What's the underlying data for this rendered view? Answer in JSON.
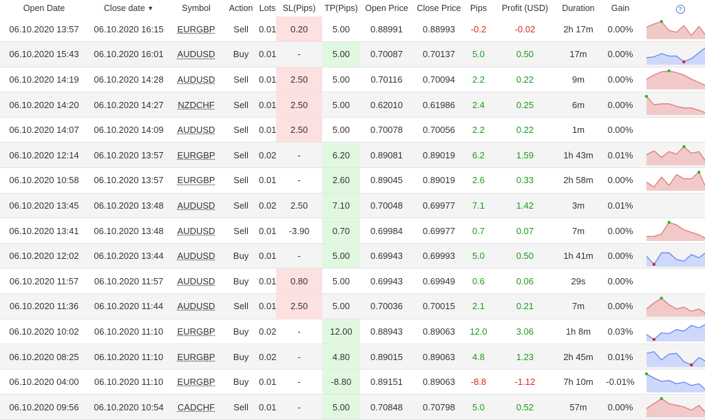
{
  "headers": {
    "open_date": "Open Date",
    "close_date": "Close date",
    "symbol": "Symbol",
    "action": "Action",
    "lots": "Lots",
    "sl": "SL(Pips)",
    "tp": "TP(Pips)",
    "open_price": "Open Price",
    "close_price": "Close Price",
    "pips": "Pips",
    "profit": "Profit (USD)",
    "duration": "Duration",
    "gain": "Gain",
    "help_icon": "?"
  },
  "colors": {
    "sell_fill": "#f2c9c9",
    "sell_stroke": "#e07878",
    "buy_fill": "#cdd8fb",
    "buy_stroke": "#6b82f0",
    "marker_high": "#22bb22",
    "marker_low": "#dd2222",
    "marker_last": "#ff9900"
  },
  "rows": [
    {
      "open": "06.10.2020 13:57",
      "close": "06.10.2020 16:15",
      "symbol": "EURGBP",
      "action": "Sell",
      "lots": "0.01",
      "sl": "0.20",
      "sl_mark": "red",
      "tp": "5.00",
      "tp_mark": "",
      "open_price": "0.88991",
      "close_price": "0.88993",
      "pips": "-0.2",
      "profit": "-0.02",
      "duration": "2h 17m",
      "gain": "0.00%",
      "spark": [
        0.6,
        0.8,
        0.95,
        0.4,
        0.3,
        0.7,
        0.1,
        0.65,
        0.05,
        0.6
      ]
    },
    {
      "open": "06.10.2020 15:43",
      "close": "06.10.2020 16:01",
      "symbol": "AUDUSD",
      "action": "Buy",
      "lots": "0.01",
      "sl": "-",
      "sl_mark": "",
      "tp": "5.00",
      "tp_mark": "green",
      "open_price": "0.70087",
      "close_price": "0.70137",
      "pips": "5.0",
      "profit": "0.50",
      "duration": "17m",
      "gain": "0.00%",
      "spark": [
        0.3,
        0.35,
        0.55,
        0.4,
        0.4,
        0.05,
        0.25,
        0.6,
        0.95,
        0.8
      ]
    },
    {
      "open": "06.10.2020 14:19",
      "close": "06.10.2020 14:28",
      "symbol": "AUDUSD",
      "action": "Sell",
      "lots": "0.01",
      "sl": "2.50",
      "sl_mark": "red",
      "tp": "5.00",
      "tp_mark": "",
      "open_price": "0.70116",
      "close_price": "0.70094",
      "pips": "2.2",
      "profit": "0.22",
      "duration": "9m",
      "gain": "0.00%",
      "spark": [
        0.5,
        0.75,
        0.95,
        1.0,
        0.9,
        0.75,
        0.5,
        0.3,
        0.1,
        0.3
      ]
    },
    {
      "open": "06.10.2020 14:20",
      "close": "06.10.2020 14:27",
      "symbol": "NZDCHF",
      "action": "Sell",
      "lots": "0.01",
      "sl": "2.50",
      "sl_mark": "red",
      "tp": "5.00",
      "tp_mark": "",
      "open_price": "0.62010",
      "close_price": "0.61986",
      "pips": "2.4",
      "profit": "0.25",
      "duration": "6m",
      "gain": "0.00%",
      "spark": [
        1.0,
        0.5,
        0.55,
        0.55,
        0.4,
        0.3,
        0.3,
        0.15,
        0.0,
        0.45
      ]
    },
    {
      "open": "06.10.2020 14:07",
      "close": "06.10.2020 14:09",
      "symbol": "AUDUSD",
      "action": "Sell",
      "lots": "0.01",
      "sl": "2.50",
      "sl_mark": "red",
      "tp": "5.00",
      "tp_mark": "",
      "open_price": "0.70078",
      "close_price": "0.70056",
      "pips": "2.2",
      "profit": "0.22",
      "duration": "1m",
      "gain": "0.00%",
      "spark": []
    },
    {
      "open": "06.10.2020 12:14",
      "close": "06.10.2020 13:57",
      "symbol": "EURGBP",
      "action": "Sell",
      "lots": "0.02",
      "sl": "-",
      "sl_mark": "",
      "tp": "6.20",
      "tp_mark": "green",
      "open_price": "0.89081",
      "close_price": "0.89019",
      "pips": "6.2",
      "profit": "1.59",
      "duration": "1h 43m",
      "gain": "0.01%",
      "spark": [
        0.5,
        0.75,
        0.35,
        0.7,
        0.55,
        1.0,
        0.6,
        0.7,
        0.05,
        0.15
      ]
    },
    {
      "open": "06.10.2020 10:58",
      "close": "06.10.2020 13:57",
      "symbol": "EURGBP",
      "action": "Sell",
      "lots": "0.01",
      "sl": "-",
      "sl_mark": "",
      "tp": "2.60",
      "tp_mark": "green",
      "open_price": "0.89045",
      "close_price": "0.89019",
      "pips": "2.6",
      "profit": "0.33",
      "duration": "2h 58m",
      "gain": "0.00%",
      "spark": [
        0.4,
        0.1,
        0.7,
        0.2,
        0.85,
        0.6,
        0.6,
        1.0,
        0.0,
        0.15
      ]
    },
    {
      "open": "06.10.2020 13:45",
      "close": "06.10.2020 13:48",
      "symbol": "AUDUSD",
      "action": "Sell",
      "lots": "0.02",
      "sl": "2.50",
      "sl_mark": "",
      "tp": "7.10",
      "tp_mark": "green",
      "open_price": "0.70048",
      "close_price": "0.69977",
      "pips": "7.1",
      "profit": "1.42",
      "duration": "3m",
      "gain": "0.01%",
      "spark": []
    },
    {
      "open": "06.10.2020 13:41",
      "close": "06.10.2020 13:48",
      "symbol": "AUDUSD",
      "action": "Sell",
      "lots": "0.01",
      "sl": "-3.90",
      "sl_mark": "",
      "tp": "0.70",
      "tp_mark": "green",
      "open_price": "0.69984",
      "close_price": "0.69977",
      "pips": "0.7",
      "profit": "0.07",
      "duration": "7m",
      "gain": "0.00%",
      "spark": [
        0.15,
        0.15,
        0.3,
        1.0,
        0.85,
        0.55,
        0.4,
        0.25,
        0.0,
        0.15
      ]
    },
    {
      "open": "06.10.2020 12:02",
      "close": "06.10.2020 13:44",
      "symbol": "AUDUSD",
      "action": "Buy",
      "lots": "0.01",
      "sl": "-",
      "sl_mark": "",
      "tp": "5.00",
      "tp_mark": "green",
      "open_price": "0.69943",
      "close_price": "0.69993",
      "pips": "5.0",
      "profit": "0.50",
      "duration": "1h 41m",
      "gain": "0.00%",
      "spark": [
        0.5,
        0.0,
        0.7,
        0.7,
        0.3,
        0.2,
        0.6,
        0.4,
        0.75,
        1.0
      ]
    },
    {
      "open": "06.10.2020 11:57",
      "close": "06.10.2020 11:57",
      "symbol": "AUDUSD",
      "action": "Buy",
      "lots": "0.01",
      "sl": "0.80",
      "sl_mark": "red",
      "tp": "5.00",
      "tp_mark": "",
      "open_price": "0.69943",
      "close_price": "0.69949",
      "pips": "0.6",
      "profit": "0.06",
      "duration": "29s",
      "gain": "0.00%",
      "spark": []
    },
    {
      "open": "06.10.2020 11:36",
      "close": "06.10.2020 11:44",
      "symbol": "AUDUSD",
      "action": "Sell",
      "lots": "0.01",
      "sl": "2.50",
      "sl_mark": "red",
      "tp": "5.00",
      "tp_mark": "",
      "open_price": "0.70036",
      "close_price": "0.70015",
      "pips": "2.1",
      "profit": "0.21",
      "duration": "7m",
      "gain": "0.00%",
      "spark": [
        0.35,
        0.7,
        1.0,
        0.6,
        0.35,
        0.45,
        0.2,
        0.35,
        0.05,
        0.2
      ]
    },
    {
      "open": "06.10.2020 10:02",
      "close": "06.10.2020 11:10",
      "symbol": "EURGBP",
      "action": "Buy",
      "lots": "0.02",
      "sl": "-",
      "sl_mark": "",
      "tp": "12.00",
      "tp_mark": "green",
      "open_price": "0.88943",
      "close_price": "0.89063",
      "pips": "12.0",
      "profit": "3.06",
      "duration": "1h 8m",
      "gain": "0.03%",
      "spark": [
        0.3,
        0.0,
        0.4,
        0.35,
        0.6,
        0.5,
        0.85,
        0.7,
        0.95,
        1.0
      ]
    },
    {
      "open": "06.10.2020 08:25",
      "close": "06.10.2020 11:10",
      "symbol": "EURGBP",
      "action": "Buy",
      "lots": "0.02",
      "sl": "-",
      "sl_mark": "",
      "tp": "4.80",
      "tp_mark": "green",
      "open_price": "0.89015",
      "close_price": "0.89063",
      "pips": "4.8",
      "profit": "1.23",
      "duration": "2h 45m",
      "gain": "0.01%",
      "spark": [
        0.7,
        0.8,
        0.3,
        0.65,
        0.7,
        0.2,
        0.0,
        0.45,
        0.2,
        1.0
      ]
    },
    {
      "open": "06.10.2020 04:00",
      "close": "06.10.2020 11:10",
      "symbol": "EURGBP",
      "action": "Buy",
      "lots": "0.01",
      "sl": "-",
      "sl_mark": "",
      "tp": "-8.80",
      "tp_mark": "green",
      "open_price": "0.89151",
      "close_price": "0.89063",
      "pips": "-8.8",
      "profit": "-1.12",
      "duration": "7h 10m",
      "gain": "-0.01%",
      "spark": [
        1.0,
        0.75,
        0.55,
        0.6,
        0.4,
        0.5,
        0.3,
        0.4,
        0.0,
        0.45
      ]
    },
    {
      "open": "06.10.2020 09:56",
      "close": "06.10.2020 10:54",
      "symbol": "CADCHF",
      "action": "Sell",
      "lots": "0.01",
      "sl": "-",
      "sl_mark": "",
      "tp": "5.00",
      "tp_mark": "green",
      "open_price": "0.70848",
      "close_price": "0.70798",
      "pips": "5.0",
      "profit": "0.52",
      "duration": "57m",
      "gain": "0.00%",
      "spark": [
        0.4,
        0.7,
        1.0,
        0.7,
        0.6,
        0.5,
        0.3,
        0.6,
        0.1,
        0.0
      ]
    }
  ]
}
